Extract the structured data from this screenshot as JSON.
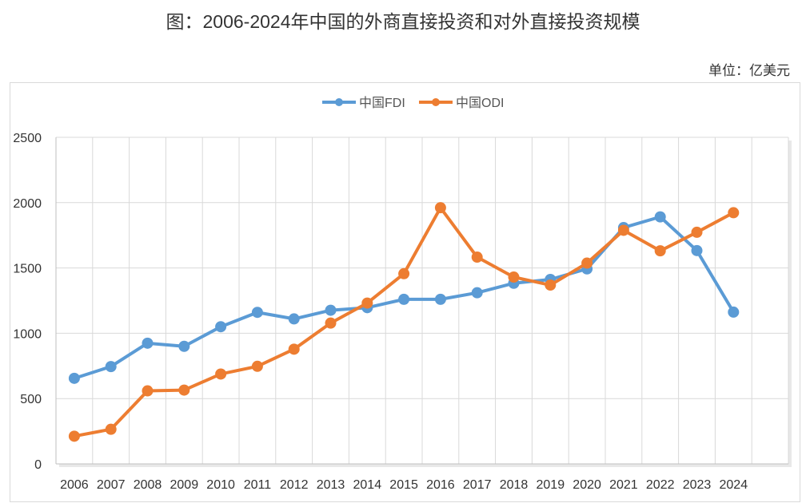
{
  "title": "图：2006-2024年中国的外商直接投资和对外直接投资规模",
  "unit": "单位：亿美元",
  "chart_data": {
    "type": "line",
    "title": "图：2006-2024年中国的外商直接投资和对外直接投资规模",
    "xlabel": "",
    "ylabel": "单位：亿美元",
    "ylim": [
      0,
      2500
    ],
    "yticks": [
      0,
      500,
      1000,
      1500,
      2000,
      2500
    ],
    "grid": true,
    "legend_position": "top",
    "categories": [
      "2006",
      "2007",
      "2008",
      "2009",
      "2010",
      "2011",
      "2012",
      "2013",
      "2014",
      "2015",
      "2016",
      "2017",
      "2018",
      "2019",
      "2020",
      "2021",
      "2022",
      "2023",
      "2024"
    ],
    "series": [
      {
        "name": "中国FDI",
        "color": "#5b9bd5",
        "values": [
          655,
          745,
          924,
          900,
          1050,
          1160,
          1110,
          1176,
          1196,
          1260,
          1260,
          1310,
          1383,
          1412,
          1493,
          1809,
          1891,
          1633,
          1162
        ]
      },
      {
        "name": "中国ODI",
        "color": "#ed7d31",
        "values": [
          212,
          265,
          559,
          565,
          688,
          747,
          878,
          1078,
          1231,
          1456,
          1961,
          1583,
          1430,
          1369,
          1537,
          1788,
          1631,
          1773,
          1923
        ]
      }
    ]
  }
}
